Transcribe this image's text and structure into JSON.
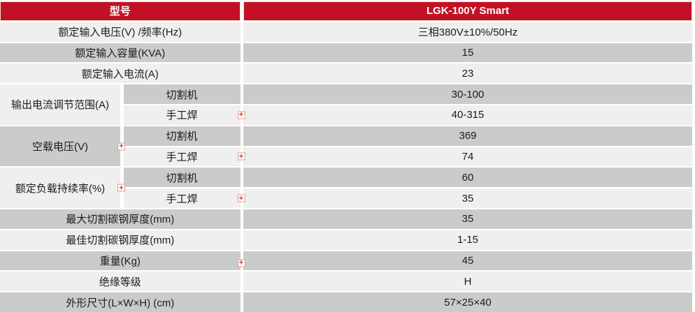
{
  "title": {
    "model_label": "型号",
    "model_value": "LGK-100Y Smart"
  },
  "rows_top": [
    {
      "label": "额定输入电压(V) /频率(Hz)",
      "value": "三相380V±10%/50Hz"
    },
    {
      "label": "额定输入容量(KVA)",
      "value": "15"
    },
    {
      "label": "额定输入电流(A)",
      "value": "23"
    }
  ],
  "groups": [
    {
      "label": "输出电流调节范围(A)",
      "sub": [
        {
          "mode": "切割机",
          "value": "30-100"
        },
        {
          "mode": "手工焊",
          "value": "40-315"
        }
      ]
    },
    {
      "label": "空载电压(V)",
      "sub": [
        {
          "mode": "切割机",
          "value": "369"
        },
        {
          "mode": "手工焊",
          "value": "74"
        }
      ]
    },
    {
      "label": "额定负载持续率(%)",
      "sub": [
        {
          "mode": "切割机",
          "value": "60"
        },
        {
          "mode": "手工焊",
          "value": "35"
        }
      ]
    }
  ],
  "rows_bottom": [
    {
      "label": "最大切割碳钢厚度(mm)",
      "value": "35"
    },
    {
      "label": "最佳切割碳钢厚度(mm)",
      "value": "1-15"
    },
    {
      "label": "重量(Kg)",
      "value": "45"
    },
    {
      "label": "绝缘等级",
      "value": "H"
    },
    {
      "label": "外形尺寸(L×W×H) (cm)",
      "value": "57×25×40"
    }
  ],
  "anchor_icon": {
    "glyph": "+"
  },
  "colors": {
    "header_red": "#c21126",
    "header_border_cream": "#ece2cd",
    "row_light": "#efefef",
    "row_gray": "#cacccb",
    "text": "#1b1b1b",
    "anchor_border": "#e69892",
    "anchor_plus": "#cc3b30"
  }
}
